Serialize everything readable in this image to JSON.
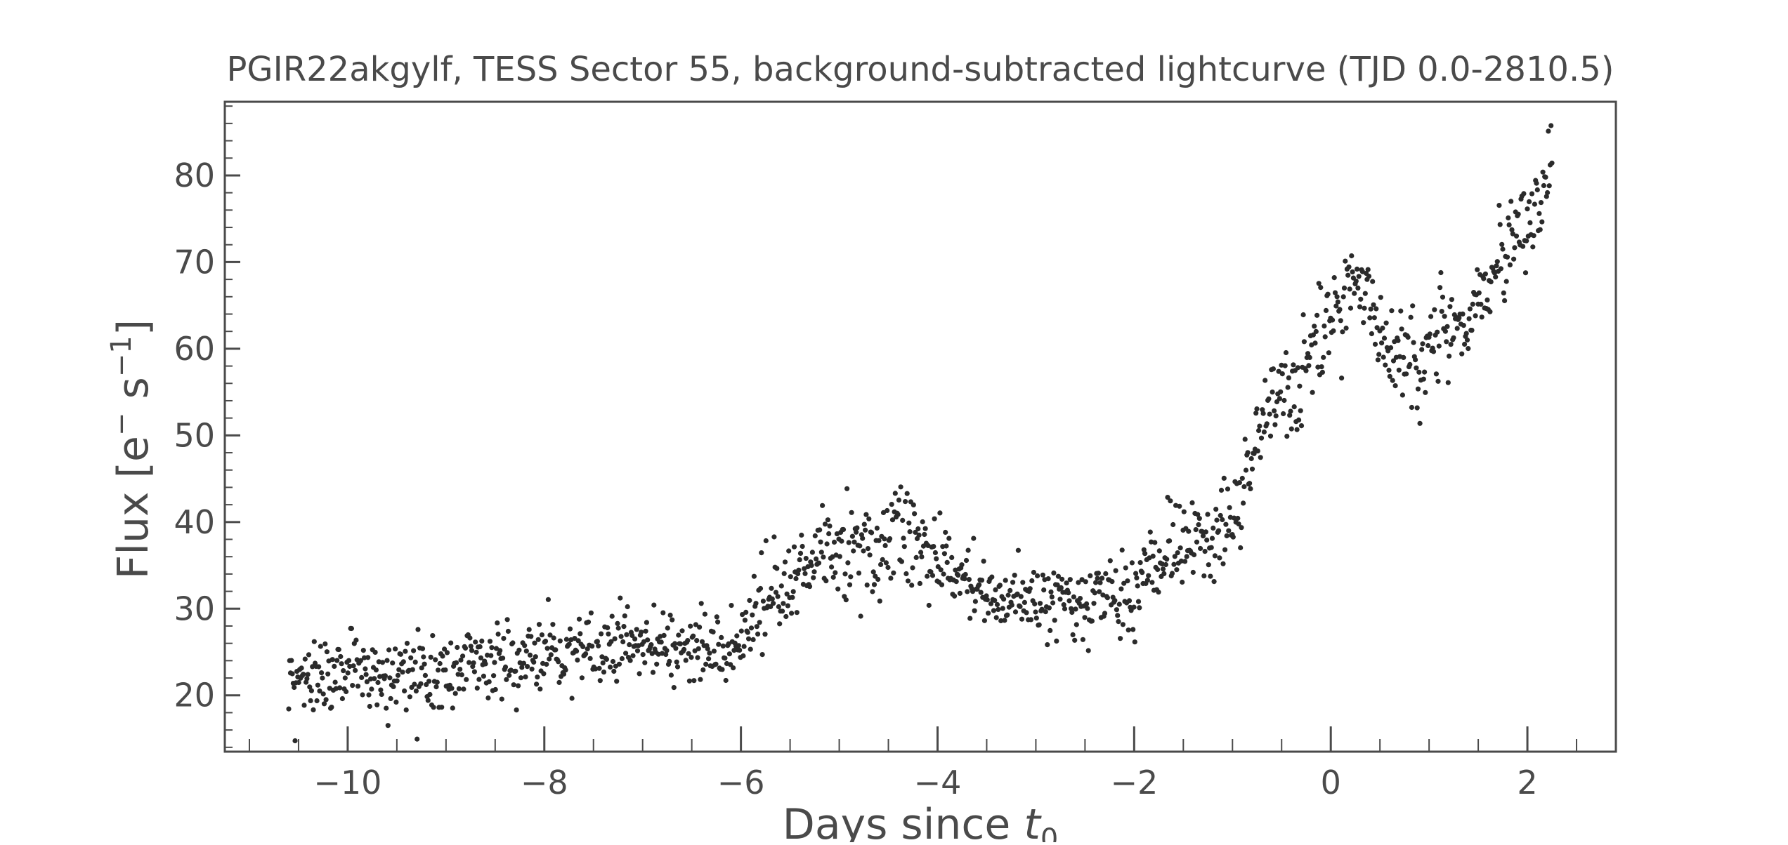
{
  "chart_data": {
    "type": "scatter",
    "title": "PGIR22akgylf, TESS Sector 55, background-subtracted lightcurve (TJD 0.0-2810.5)",
    "xlabel": "Days since ",
    "xlabel_var": "t",
    "xlabel_sub": "0",
    "ylabel": "Flux [e",
    "ylabel_sup1": "−",
    "ylabel_mid": " s",
    "ylabel_sup2": "−1",
    "ylabel_end": "]",
    "xlim": [
      -11.25,
      2.9
    ],
    "ylim": [
      13.5,
      88.5
    ],
    "xticks": [
      -10,
      -8,
      -6,
      -4,
      -2,
      0,
      2
    ],
    "xtick_labels": [
      "−10",
      "−8",
      "−6",
      "−4",
      "−2",
      "0",
      "2"
    ],
    "yticks": [
      20,
      30,
      40,
      50,
      60,
      70,
      80
    ],
    "ytick_labels": [
      "20",
      "30",
      "40",
      "50",
      "60",
      "70",
      "80"
    ],
    "grid": false,
    "marker_color": "#2b2b2b",
    "axis_color": "#4a4a4a",
    "trend": {
      "x": [
        -10.6,
        -10.3,
        -10.0,
        -9.6,
        -9.3,
        -9.0,
        -8.5,
        -8.0,
        -7.5,
        -7.0,
        -6.5,
        -6.0,
        -5.95,
        -5.8,
        -5.6,
        -5.4,
        -5.2,
        -5.0,
        -4.8,
        -4.6,
        -4.4,
        -4.2,
        -4.0,
        -3.8,
        -3.5,
        -3.2,
        -3.0,
        -2.8,
        -2.6,
        -2.4,
        -2.2,
        -2.0,
        -1.8,
        -1.6,
        -1.4,
        -1.2,
        -1.0,
        -0.9,
        -0.8,
        -0.7,
        -0.6,
        -0.5,
        -0.4,
        -0.3,
        -0.2,
        -0.1,
        0.0,
        0.1,
        0.2,
        0.3,
        0.4,
        0.5,
        0.6,
        0.8,
        0.9,
        1.0,
        1.1,
        1.2,
        1.4,
        1.6,
        1.8,
        2.0,
        2.1,
        2.2,
        2.25
      ],
      "y": [
        22.5,
        22.0,
        23.0,
        22.5,
        22.5,
        23.0,
        24.0,
        24.5,
        25.0,
        25.5,
        25.5,
        25.0,
        28.0,
        31.0,
        32.0,
        34.5,
        36.5,
        37.5,
        36.5,
        36.5,
        39.0,
        37.5,
        36.0,
        33.5,
        32.0,
        31.5,
        30.5,
        30.0,
        31.0,
        31.0,
        31.5,
        32.0,
        35.0,
        36.5,
        38.0,
        38.5,
        40.0,
        44.0,
        47.5,
        51.0,
        54.0,
        55.5,
        55.0,
        57.0,
        59.0,
        61.0,
        63.0,
        65.0,
        69.0,
        67.0,
        64.5,
        61.0,
        60.0,
        59.5,
        58.0,
        60.0,
        62.0,
        62.0,
        63.0,
        67.0,
        72.0,
        74.0,
        75.5,
        78.5,
        82.0
      ]
    },
    "scatter_sd": 2.2,
    "points_per_day": 108
  }
}
